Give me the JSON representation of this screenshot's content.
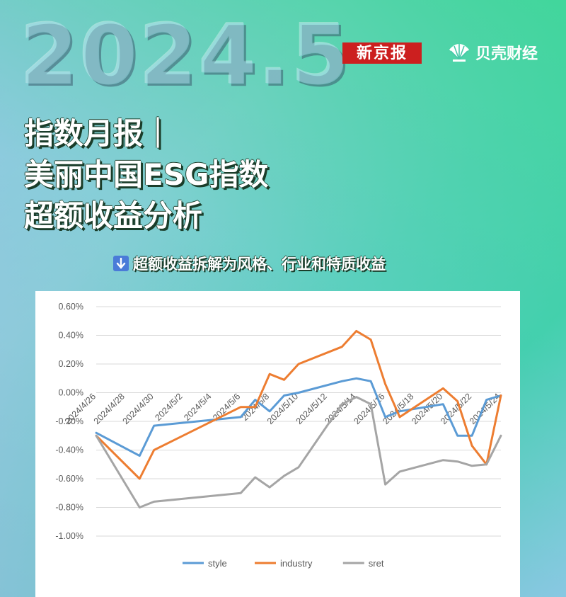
{
  "header": {
    "year_label": "2024.5",
    "logo_left": "新京报",
    "logo_right": "贝壳财经",
    "title_lines": [
      "指数月报｜",
      "美丽中国ESG指数",
      "超额收益分析"
    ],
    "subtitle": "超额收益拆解为风格、行业和特质收益",
    "subtitle_icon": "down-arrow-icon"
  },
  "chart_data": {
    "type": "line",
    "x": [
      "2024/4/26",
      "2024/4/29",
      "2024/4/30",
      "2024/5/6",
      "2024/5/7",
      "2024/5/8",
      "2024/5/9",
      "2024/5/10",
      "2024/5/13",
      "2024/5/14",
      "2024/5/15",
      "2024/5/16",
      "2024/5/17",
      "2024/5/20",
      "2024/5/21",
      "2024/5/22",
      "2024/5/23",
      "2024/5/24"
    ],
    "x_dates": [
      "2024-04-26",
      "2024-04-29",
      "2024-04-30",
      "2024-05-06",
      "2024-05-07",
      "2024-05-08",
      "2024-05-09",
      "2024-05-10",
      "2024-05-13",
      "2024-05-14",
      "2024-05-15",
      "2024-05-16",
      "2024-05-17",
      "2024-05-20",
      "2024-05-21",
      "2024-05-22",
      "2024-05-23",
      "2024-05-24"
    ],
    "x_ticks": [
      "2024/4/26",
      "2024/4/28",
      "2024/4/30",
      "2024/5/2",
      "2024/5/4",
      "2024/5/6",
      "2024/5/8",
      "2024/5/10",
      "2024/5/12",
      "2024/5/14",
      "2024/5/16",
      "2024/5/18",
      "2024/5/20",
      "2024/5/22",
      "2024/5/24"
    ],
    "y_ticks": [
      "0.60%",
      "0.40%",
      "0.20%",
      "0.00%",
      "-0.20%",
      "-0.40%",
      "-0.60%",
      "-0.80%",
      "-1.00%"
    ],
    "ylim": [
      -1.0,
      0.6
    ],
    "y_unit": "%",
    "grid": true,
    "legend_position": "bottom",
    "series": [
      {
        "name": "style",
        "color": "#5b9bd5",
        "values": [
          -0.28,
          -0.44,
          -0.23,
          -0.17,
          -0.05,
          -0.13,
          -0.02,
          0.0,
          0.08,
          0.1,
          0.08,
          -0.17,
          -0.13,
          -0.08,
          -0.3,
          -0.3,
          -0.05,
          -0.02
        ]
      },
      {
        "name": "industry",
        "color": "#ed7d31",
        "values": [
          -0.3,
          -0.6,
          -0.4,
          -0.1,
          -0.1,
          0.13,
          0.09,
          0.2,
          0.32,
          0.43,
          0.37,
          0.06,
          -0.17,
          0.03,
          -0.06,
          -0.37,
          -0.5,
          -0.02
        ]
      },
      {
        "name": "sret",
        "color": "#a5a5a5",
        "values": [
          -0.3,
          -0.8,
          -0.76,
          -0.7,
          -0.59,
          -0.66,
          -0.58,
          -0.52,
          -0.08,
          -0.03,
          -0.08,
          -0.64,
          -0.55,
          -0.47,
          -0.48,
          -0.51,
          -0.5,
          -0.3
        ]
      }
    ]
  }
}
